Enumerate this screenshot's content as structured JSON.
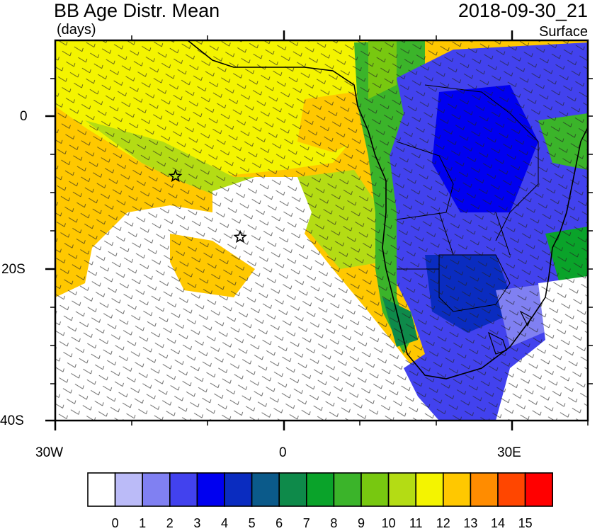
{
  "header": {
    "title": "BB Age Distr. Mean",
    "units": "(days)",
    "time": "2018-09-30_21",
    "level": "Surface"
  },
  "axes": {
    "y_ticks": [
      {
        "label": "0"
      },
      {
        "label": "20S"
      },
      {
        "label": "40S"
      }
    ],
    "x_ticks": [
      {
        "label": "30W"
      },
      {
        "label": "0"
      },
      {
        "label": "30E"
      }
    ]
  },
  "colorbar": {
    "colors": [
      "#ffffff",
      "#bbbbf8",
      "#8080f2",
      "#4242ee",
      "#0000f0",
      "#0a2cc0",
      "#0b5a8a",
      "#0e8a4a",
      "#0aa32a",
      "#3bb42a",
      "#78c810",
      "#b4dc14",
      "#f4f400",
      "#ffc800",
      "#ff8c00",
      "#ff4600",
      "#ff0000"
    ],
    "labels": [
      "0",
      "1",
      "2",
      "3",
      "4",
      "5",
      "6",
      "7",
      "8",
      "9",
      "10",
      "11",
      "12",
      "13",
      "14",
      "15"
    ]
  },
  "markers": [
    {
      "name": "star-marker-west",
      "lon": -14.2,
      "lat": -7.9
    },
    {
      "name": "star-marker-ascension",
      "lon": -5.7,
      "lat": -15.9
    }
  ]
}
